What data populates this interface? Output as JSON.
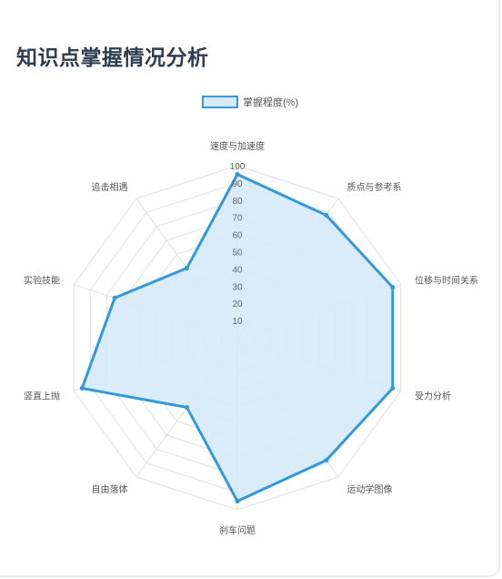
{
  "title": "知识点掌握情况分析",
  "chart_data": {
    "type": "radar",
    "title": "知识点掌握情况分析",
    "categories": [
      "速度与加速度",
      "质点与参考系",
      "位移与时间关系",
      "受力分析",
      "运动学图像",
      "刹车问题",
      "自由落体",
      "竖直上抛",
      "实验技能",
      "追击相遇"
    ],
    "series": [
      {
        "name": "掌握程度(%)",
        "values": [
          95,
          88,
          95,
          95,
          88,
          95,
          50,
          95,
          75,
          50
        ]
      }
    ],
    "rlim": [
      0,
      100
    ],
    "ticks": [
      10,
      20,
      30,
      40,
      50,
      60,
      70,
      80,
      90,
      100
    ],
    "grid": true,
    "legend": "top",
    "colors": {
      "line": "#3498db",
      "fill": "#d6eaf8",
      "grid": "#e0e0e0",
      "title": "#2c3e50"
    }
  }
}
